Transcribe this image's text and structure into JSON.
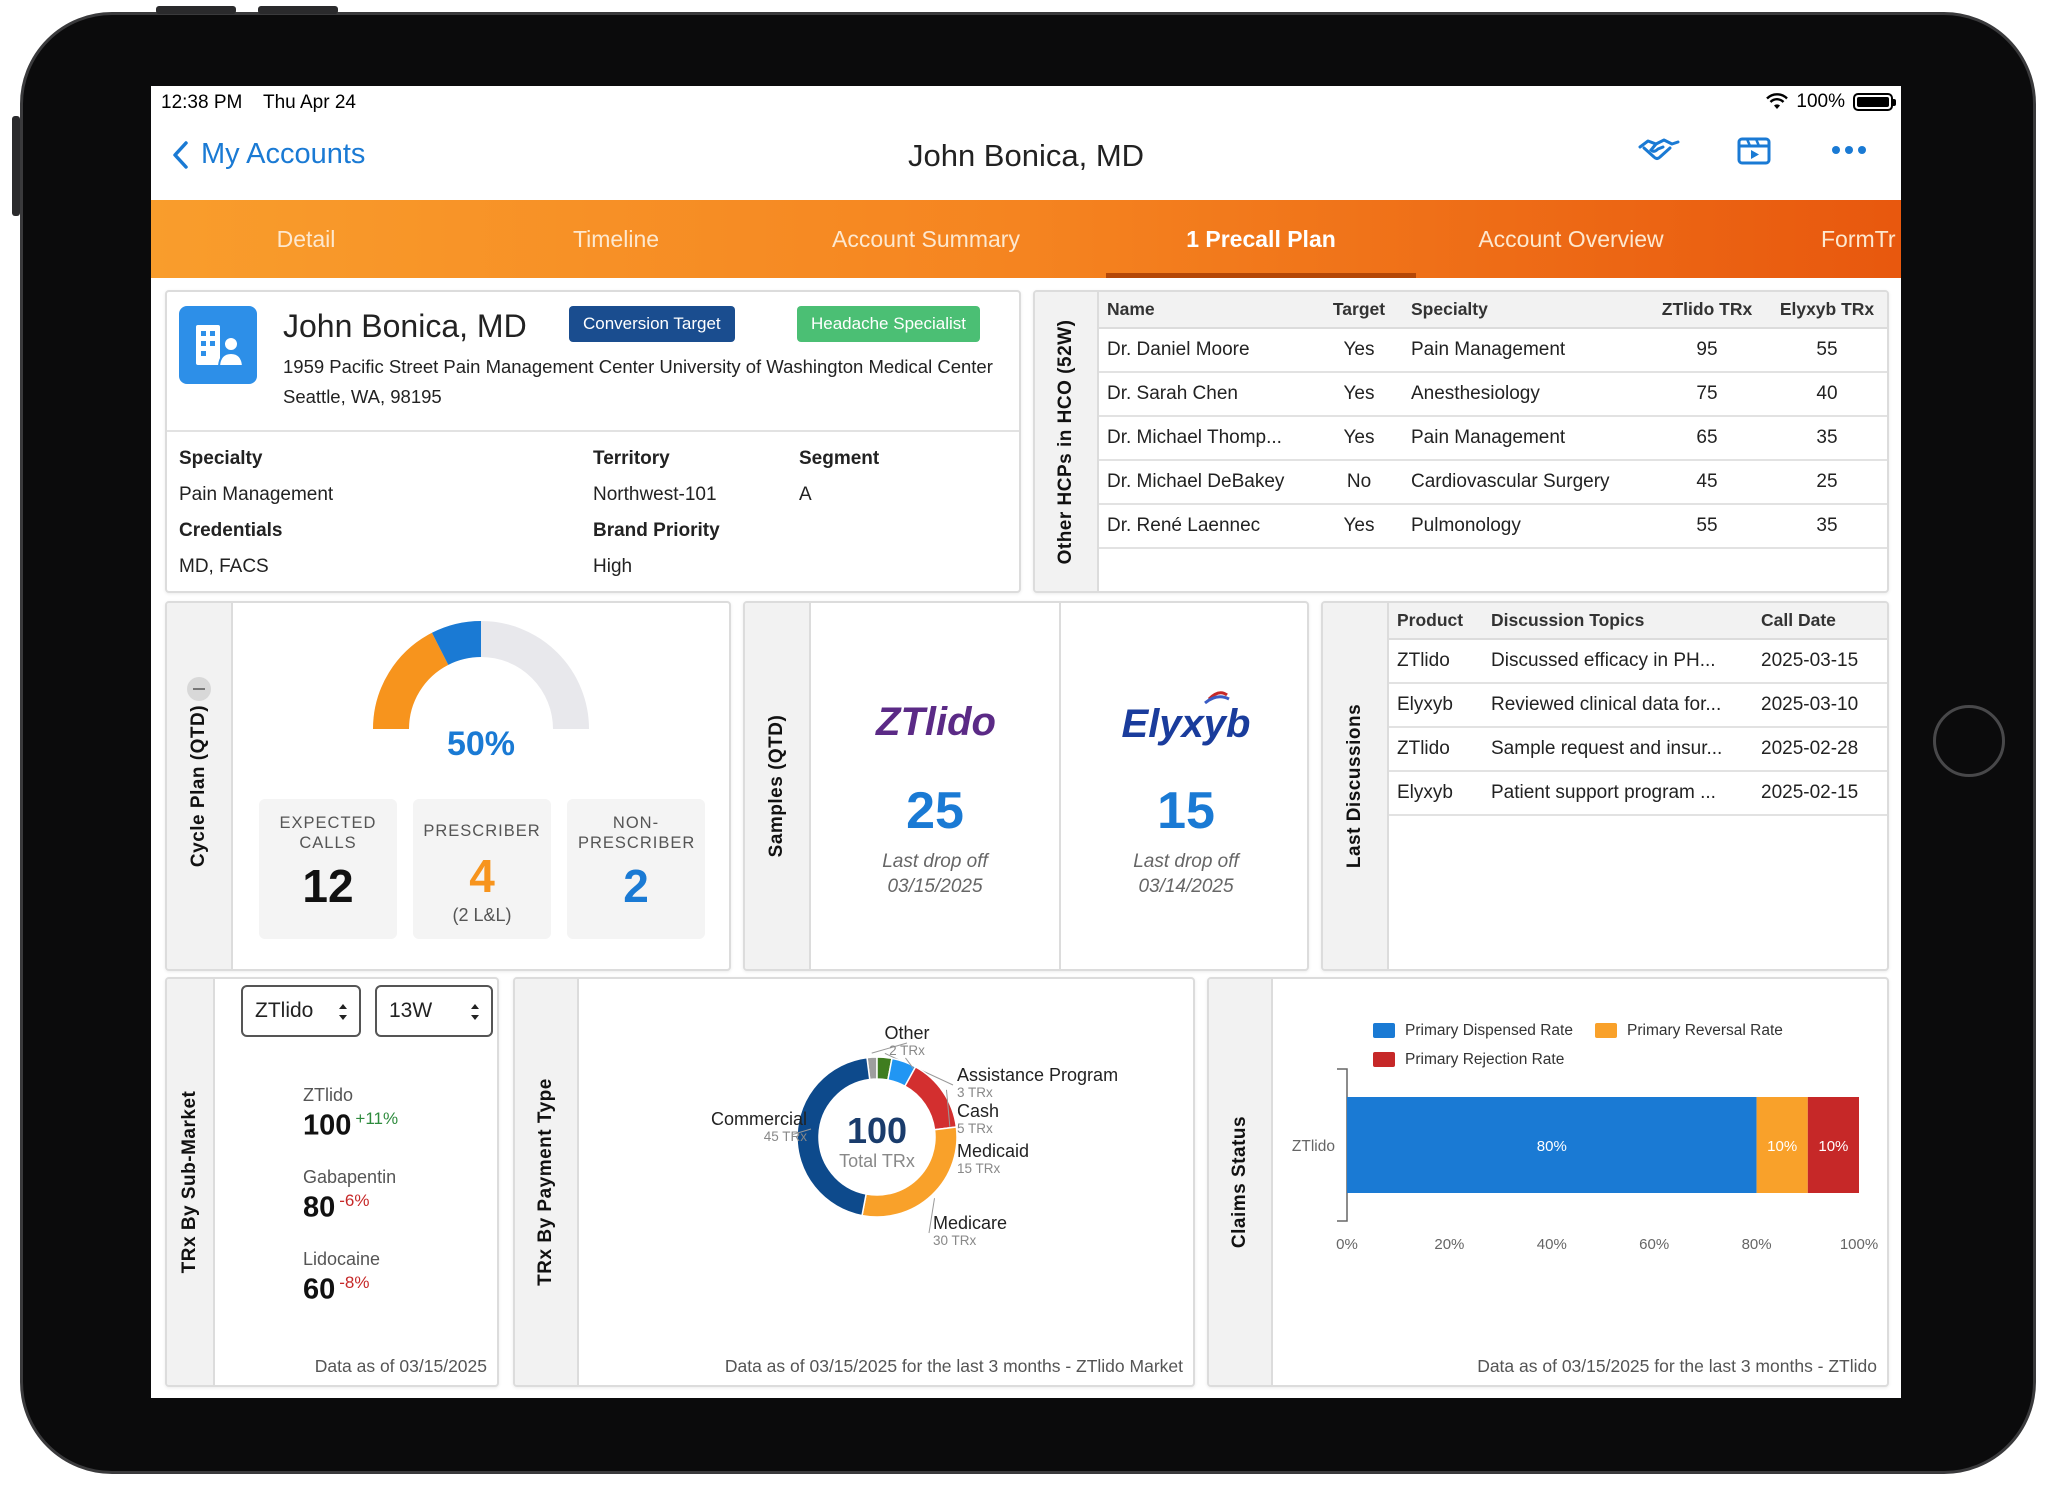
{
  "status_bar": {
    "time": "12:38 PM",
    "date": "Thu Apr 24",
    "battery": "100%"
  },
  "nav": {
    "back_label": "My Accounts",
    "title": "John Bonica, MD",
    "icons": [
      "handshake-icon",
      "video-icon",
      "more-icon"
    ]
  },
  "tabs": [
    {
      "label": "Detail",
      "active": false
    },
    {
      "label": "Timeline",
      "active": false
    },
    {
      "label": "Account Summary",
      "active": false
    },
    {
      "label": "1 Precall Plan",
      "active": true
    },
    {
      "label": "Account Overview",
      "active": false
    },
    {
      "label": "FormTr",
      "active": false
    }
  ],
  "profile": {
    "name": "John Bonica, MD",
    "badges": [
      {
        "label": "Conversion Target",
        "color": "#1a4d8f"
      },
      {
        "label": "Headache Specialist",
        "color": "#4bbf74"
      }
    ],
    "address": "1959 Pacific Street Pain Management Center University of Washington Medical Center Seattle, WA, 98195",
    "specialty_label": "Specialty",
    "specialty": "Pain Management",
    "credentials_label": "Credentials",
    "credentials": "MD, FACS",
    "territory_label": "Territory",
    "territory": "Northwest-101",
    "brand_priority_label": "Brand Priority",
    "brand_priority": "High",
    "segment_label": "Segment",
    "segment": "A"
  },
  "hcp_table": {
    "rail_label": "Other HCPs in HCO (52W)",
    "columns": [
      "Name",
      "Target",
      "Specialty",
      "ZTlido TRx",
      "Elyxyb TRx"
    ],
    "rows": [
      [
        "Dr. Daniel Moore",
        "Yes",
        "Pain Management",
        "95",
        "55"
      ],
      [
        "Dr. Sarah Chen",
        "Yes",
        "Anesthesiology",
        "75",
        "40"
      ],
      [
        "Dr. Michael Thomp...",
        "Yes",
        "Pain Management",
        "65",
        "35"
      ],
      [
        "Dr. Michael DeBakey",
        "No",
        "Cardiovascular Surgery",
        "45",
        "25"
      ],
      [
        "Dr. René Laennec",
        "Yes",
        "Pulmonology",
        "55",
        "35"
      ]
    ]
  },
  "cycle_plan": {
    "rail_label": "Cycle Plan (QTD)",
    "progress_label": "50%",
    "progress": 0.5,
    "segments": [
      {
        "fraction": 0.35,
        "color": "#f7941d"
      },
      {
        "fraction": 0.15,
        "color": "#1a7ad4"
      }
    ],
    "stats": [
      {
        "label": "EXPECTED CALLS",
        "value": "12",
        "color": "#111111",
        "sub": ""
      },
      {
        "label": "PRESCRIBER",
        "value": "4",
        "color": "#f7941d",
        "sub": "(2 L&L)"
      },
      {
        "label": "NON-PRESCRIBER",
        "value": "2",
        "color": "#1a7ad4",
        "sub": ""
      }
    ]
  },
  "samples": {
    "rail_label": "Samples (QTD)",
    "items": [
      {
        "brand": "ZTlido",
        "count": "25",
        "sub1": "Last drop off",
        "sub2": "03/15/2025"
      },
      {
        "brand": "Elyxyb",
        "count": "15",
        "sub1": "Last drop off",
        "sub2": "03/14/2025"
      }
    ]
  },
  "discussions": {
    "rail_label": "Last Discussions",
    "columns": [
      "Product",
      "Discussion Topics",
      "Call Date"
    ],
    "rows": [
      [
        "ZTlido",
        "Discussed efficacy in PH...",
        "2025-03-15"
      ],
      [
        "Elyxyb",
        "Reviewed clinical data for...",
        "2025-03-10"
      ],
      [
        "ZTlido",
        "Sample request and insur...",
        "2025-02-28"
      ],
      [
        "Elyxyb",
        "Patient support program ...",
        "2025-02-15"
      ]
    ]
  },
  "submarket": {
    "rail_label": "TRx By Sub-Market",
    "product_select": "ZTlido",
    "period_select": "13W",
    "items": [
      {
        "name": "ZTlido",
        "value": "100",
        "change": "+11%",
        "change_color": "#2e8b3d"
      },
      {
        "name": "Gabapentin",
        "value": "80",
        "change": "-6%",
        "change_color": "#c62828"
      },
      {
        "name": "Lidocaine",
        "value": "60",
        "change": "-8%",
        "change_color": "#c62828"
      }
    ],
    "footnote": "Data as of 03/15/2025"
  },
  "payment_type": {
    "rail_label": "TRx By Payment Type",
    "center_value": "100",
    "center_label": "Total TRx",
    "footnote": "Data as of 03/15/2025 for the last 3 months - ZTlido Market",
    "chart_data": {
      "type": "pie",
      "categories": [
        "Other",
        "Assistance Program",
        "Cash",
        "Medicaid",
        "Medicare",
        "Commercial"
      ],
      "values": [
        2,
        3,
        5,
        15,
        30,
        45
      ],
      "value_labels": [
        "2 TRx",
        "3 TRx",
        "5 TRx",
        "15 TRx",
        "30 TRx",
        "45 TRx"
      ],
      "colors": [
        "#9e9e9e",
        "#3f7d1f",
        "#2196f3",
        "#d32f2f",
        "#f9a12a",
        "#0d4a8c"
      ]
    }
  },
  "claims": {
    "rail_label": "Claims Status",
    "footnote": "Data as of 03/15/2025 for the last 3 months - ZTlido",
    "chart_data": {
      "type": "bar",
      "orientation": "horizontal",
      "stacked": true,
      "categories": [
        "ZTlido"
      ],
      "series": [
        {
          "name": "Primary Dispensed Rate",
          "values": [
            80
          ],
          "color": "#1a7ad4",
          "label": "80%"
        },
        {
          "name": "Primary Reversal Rate",
          "values": [
            10
          ],
          "color": "#f9a12a",
          "label": "10%"
        },
        {
          "name": "Primary Rejection Rate",
          "values": [
            10
          ],
          "color": "#c62828",
          "label": "10%"
        }
      ],
      "xticks": [
        "0%",
        "20%",
        "40%",
        "60%",
        "80%",
        "100%"
      ],
      "xlim": [
        0,
        100
      ],
      "legend": "top"
    }
  }
}
